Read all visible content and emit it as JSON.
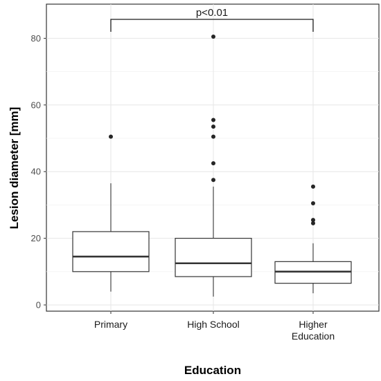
{
  "chart_data": {
    "type": "box",
    "title": "",
    "xlabel": "Education",
    "ylabel": "Lesion diameter [mm]",
    "ylim": [
      -1.5,
      86
    ],
    "yticks": [
      "0",
      "20",
      "40",
      "60",
      "80"
    ],
    "ytick_values": [
      0,
      20,
      40,
      60,
      80
    ],
    "grid": true,
    "categories": [
      "Primary",
      "High School",
      "Higher Education"
    ],
    "category_lines": [
      [
        "Primary"
      ],
      [
        "High School"
      ],
      [
        "Higher",
        "Education"
      ]
    ],
    "boxes": [
      {
        "name": "Primary",
        "whisker_low": 4,
        "q1": 10,
        "median": 14.5,
        "q3": 22,
        "whisker_high": 36.5,
        "outliers": [
          50.5
        ]
      },
      {
        "name": "High School",
        "whisker_low": 2.5,
        "q1": 8.5,
        "median": 12.5,
        "q3": 20,
        "whisker_high": 35.5,
        "outliers": [
          37.5,
          42.5,
          50.5,
          53.5,
          55.5,
          80.5
        ]
      },
      {
        "name": "Higher Education",
        "whisker_low": 3.5,
        "q1": 6.5,
        "median": 10,
        "q3": 13,
        "whisker_high": 18.5,
        "outliers": [
          24.5,
          25.5,
          30.5,
          35.5
        ]
      }
    ],
    "annotation": {
      "text": "p<0.01",
      "from": "Primary",
      "to": "Higher Education",
      "y": 85
    }
  }
}
